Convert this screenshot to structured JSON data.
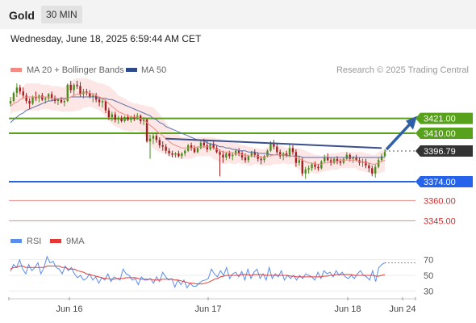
{
  "header": {
    "instrument": "Gold",
    "timeframe": "30 MIN",
    "timestamp": "Wednesday, June 18, 2025 6:59:44 AM CET"
  },
  "legend": {
    "ma20": "MA 20 + Bollinger Bands",
    "ma50": "MA 50",
    "copyright": "Research © 2025 Trading Central"
  },
  "colors": {
    "resistance": "#58a11c",
    "current": "#333333",
    "support_pivot": "#2563eb",
    "support": "#e57373",
    "candle_up": "#4c8c1e",
    "candle_down": "#a31d1d",
    "band": "#fde0e0",
    "ma20": "#f28b82",
    "ma50": "#5c6fa8",
    "trendline": "#3b4f8a",
    "arrow": "#2f5fa8",
    "rsi": "#5b8def",
    "rsi_ma": "#e53935"
  },
  "levels": [
    {
      "value": 3421.0,
      "label": "3421.00",
      "role": "resistance"
    },
    {
      "value": 3410.0,
      "label": "3410.00",
      "role": "resistance"
    },
    {
      "value": 3396.79,
      "label": "3396.79",
      "role": "current"
    },
    {
      "value": 3374.0,
      "label": "3374.00",
      "role": "support_pivot"
    },
    {
      "value": 3360.0,
      "label": "3360.00",
      "role": "support"
    },
    {
      "value": 3345.0,
      "label": "3345.00",
      "role": "support"
    }
  ],
  "rsi": {
    "legend_rsi": "RSI",
    "legend_ma": "9MA",
    "ticks": [
      70,
      50,
      30
    ],
    "ylim": [
      20,
      80
    ],
    "rsi_values": [
      55,
      64,
      60,
      70,
      58,
      52,
      64,
      56,
      60,
      66,
      52,
      60,
      74,
      66,
      68,
      60,
      58,
      52,
      62,
      56,
      60,
      52,
      47,
      50,
      44,
      46,
      52,
      44,
      48,
      40,
      47,
      44,
      52,
      42,
      48,
      46,
      44,
      58,
      52,
      50,
      44,
      46,
      38,
      48,
      44,
      44,
      46,
      40,
      48,
      42,
      54,
      48,
      44,
      46,
      35,
      44,
      38,
      44,
      34,
      40,
      36,
      36,
      40,
      43,
      44,
      46,
      58,
      52,
      48,
      56,
      50,
      60,
      46,
      52,
      54,
      48,
      55,
      44,
      58,
      46,
      54,
      58,
      46,
      52,
      44,
      60,
      46,
      52,
      48,
      56,
      44,
      50,
      46,
      50,
      44,
      50,
      46,
      52,
      50,
      48,
      44,
      54,
      46,
      56,
      52,
      54,
      48,
      56,
      50,
      54,
      48,
      46,
      50,
      46,
      52,
      56,
      50,
      48,
      44,
      56,
      42,
      60,
      64,
      66
    ],
    "ma_values": [
      58,
      60,
      60,
      62,
      62,
      60,
      60,
      60,
      60,
      60,
      60,
      60,
      62,
      62,
      62,
      62,
      62,
      60,
      60,
      58,
      58,
      58,
      56,
      55,
      54,
      52,
      51,
      50,
      49,
      48,
      47,
      46,
      46,
      45,
      45,
      46,
      46,
      46,
      47,
      47,
      47,
      47,
      46,
      45,
      45,
      45,
      45,
      44,
      44,
      44,
      45,
      45,
      45,
      45,
      44,
      44,
      43,
      42,
      41,
      40,
      40,
      39,
      39,
      39,
      40,
      41,
      43,
      45,
      46,
      48,
      49,
      50,
      50,
      50,
      50,
      50,
      51,
      51,
      51,
      50,
      51,
      51,
      51,
      51,
      50,
      50,
      50,
      50,
      50,
      50,
      50,
      50,
      49,
      49,
      48,
      48,
      48,
      48,
      48,
      48,
      48,
      48,
      48,
      49,
      49,
      50,
      50,
      51,
      51,
      51,
      51,
      51,
      51,
      50,
      50,
      50,
      50,
      50,
      50,
      50,
      49,
      49,
      50,
      51
    ]
  },
  "chart_data": {
    "type": "candlestick",
    "title": "Gold",
    "timeframe": "30 MIN",
    "xlabel": "",
    "ylabel": "",
    "ylim": [
      3338,
      3452
    ],
    "x_ticks": [
      "Jun 16",
      "Jun 17",
      "Jun 18",
      "Jun 24"
    ],
    "candles": [
      [
        3432,
        3437,
        3430,
        3434
      ],
      [
        3434,
        3441,
        3433,
        3440
      ],
      [
        3440,
        3447,
        3437,
        3444
      ],
      [
        3444,
        3446,
        3439,
        3441
      ],
      [
        3441,
        3444,
        3436,
        3438
      ],
      [
        3438,
        3440,
        3432,
        3434
      ],
      [
        3434,
        3436,
        3428,
        3432
      ],
      [
        3432,
        3438,
        3431,
        3437
      ],
      [
        3437,
        3441,
        3434,
        3436
      ],
      [
        3436,
        3439,
        3433,
        3438
      ],
      [
        3438,
        3440,
        3434,
        3435
      ],
      [
        3435,
        3437,
        3432,
        3436
      ],
      [
        3436,
        3440,
        3434,
        3439
      ],
      [
        3439,
        3441,
        3434,
        3436
      ],
      [
        3436,
        3438,
        3432,
        3434
      ],
      [
        3434,
        3436,
        3431,
        3435
      ],
      [
        3435,
        3437,
        3432,
        3433
      ],
      [
        3433,
        3435,
        3430,
        3434
      ],
      [
        3434,
        3447,
        3433,
        3446
      ],
      [
        3446,
        3449,
        3440,
        3442
      ],
      [
        3442,
        3447,
        3438,
        3446
      ],
      [
        3446,
        3449,
        3443,
        3445
      ],
      [
        3445,
        3448,
        3437,
        3439
      ],
      [
        3439,
        3443,
        3436,
        3441
      ],
      [
        3441,
        3443,
        3438,
        3440
      ],
      [
        3440,
        3442,
        3436,
        3437
      ],
      [
        3437,
        3440,
        3433,
        3438
      ],
      [
        3438,
        3440,
        3433,
        3435
      ],
      [
        3435,
        3437,
        3430,
        3433
      ],
      [
        3433,
        3436,
        3429,
        3434
      ],
      [
        3434,
        3435,
        3425,
        3427
      ],
      [
        3427,
        3429,
        3420,
        3422
      ],
      [
        3422,
        3426,
        3419,
        3424
      ],
      [
        3424,
        3426,
        3418,
        3420
      ],
      [
        3420,
        3423,
        3417,
        3421
      ],
      [
        3421,
        3423,
        3418,
        3419
      ],
      [
        3419,
        3423,
        3418,
        3422
      ],
      [
        3422,
        3424,
        3419,
        3420
      ],
      [
        3420,
        3423,
        3418,
        3422
      ],
      [
        3422,
        3424,
        3419,
        3421
      ],
      [
        3421,
        3425,
        3420,
        3423
      ],
      [
        3423,
        3424,
        3417,
        3419
      ],
      [
        3419,
        3422,
        3416,
        3420
      ],
      [
        3420,
        3421,
        3403,
        3404
      ],
      [
        3404,
        3409,
        3391,
        3406
      ],
      [
        3406,
        3410,
        3402,
        3408
      ],
      [
        3408,
        3410,
        3403,
        3405
      ],
      [
        3405,
        3407,
        3399,
        3401
      ],
      [
        3401,
        3404,
        3397,
        3400
      ],
      [
        3400,
        3402,
        3395,
        3397
      ],
      [
        3397,
        3399,
        3393,
        3395
      ],
      [
        3395,
        3397,
        3392,
        3394
      ],
      [
        3394,
        3396,
        3392,
        3395
      ],
      [
        3395,
        3397,
        3392,
        3393
      ],
      [
        3393,
        3396,
        3391,
        3395
      ],
      [
        3395,
        3398,
        3393,
        3397
      ],
      [
        3397,
        3402,
        3396,
        3401
      ],
      [
        3401,
        3403,
        3397,
        3399
      ],
      [
        3399,
        3401,
        3395,
        3396
      ],
      [
        3396,
        3400,
        3395,
        3399
      ],
      [
        3399,
        3405,
        3398,
        3403
      ],
      [
        3403,
        3406,
        3399,
        3401
      ],
      [
        3401,
        3404,
        3396,
        3398
      ],
      [
        3398,
        3403,
        3397,
        3402
      ],
      [
        3402,
        3404,
        3398,
        3399
      ],
      [
        3399,
        3401,
        3395,
        3396
      ],
      [
        3396,
        3398,
        3378,
        3394
      ],
      [
        3394,
        3397,
        3388,
        3392
      ],
      [
        3392,
        3396,
        3390,
        3395
      ],
      [
        3395,
        3397,
        3391,
        3393
      ],
      [
        3393,
        3396,
        3390,
        3394
      ],
      [
        3394,
        3398,
        3393,
        3397
      ],
      [
        3397,
        3399,
        3393,
        3395
      ],
      [
        3395,
        3397,
        3390,
        3392
      ],
      [
        3392,
        3395,
        3388,
        3390
      ],
      [
        3390,
        3394,
        3388,
        3393
      ],
      [
        3393,
        3397,
        3392,
        3396
      ],
      [
        3396,
        3398,
        3392,
        3394
      ],
      [
        3394,
        3396,
        3389,
        3391
      ],
      [
        3391,
        3393,
        3387,
        3390
      ],
      [
        3390,
        3394,
        3388,
        3393
      ],
      [
        3393,
        3398,
        3392,
        3397
      ],
      [
        3397,
        3404,
        3396,
        3403
      ],
      [
        3403,
        3405,
        3398,
        3400
      ],
      [
        3400,
        3402,
        3394,
        3396
      ],
      [
        3396,
        3398,
        3391,
        3393
      ],
      [
        3393,
        3396,
        3390,
        3395
      ],
      [
        3395,
        3397,
        3392,
        3393
      ],
      [
        3393,
        3402,
        3392,
        3399
      ],
      [
        3399,
        3401,
        3394,
        3396
      ],
      [
        3396,
        3398,
        3385,
        3388
      ],
      [
        3388,
        3393,
        3386,
        3390
      ],
      [
        3390,
        3392,
        3378,
        3380
      ],
      [
        3380,
        3385,
        3376,
        3383
      ],
      [
        3383,
        3386,
        3380,
        3384
      ],
      [
        3384,
        3388,
        3382,
        3387
      ],
      [
        3387,
        3389,
        3383,
        3385
      ],
      [
        3385,
        3387,
        3382,
        3384
      ],
      [
        3384,
        3390,
        3383,
        3389
      ],
      [
        3389,
        3394,
        3388,
        3392
      ],
      [
        3392,
        3395,
        3389,
        3390
      ],
      [
        3390,
        3392,
        3386,
        3388
      ],
      [
        3388,
        3392,
        3387,
        3391
      ],
      [
        3391,
        3393,
        3387,
        3389
      ],
      [
        3389,
        3391,
        3386,
        3388
      ],
      [
        3388,
        3392,
        3387,
        3391
      ],
      [
        3391,
        3396,
        3390,
        3394
      ],
      [
        3394,
        3395,
        3389,
        3391
      ],
      [
        3391,
        3393,
        3388,
        3392
      ],
      [
        3392,
        3394,
        3389,
        3390
      ],
      [
        3390,
        3392,
        3386,
        3388
      ],
      [
        3388,
        3391,
        3385,
        3389
      ],
      [
        3389,
        3391,
        3384,
        3386
      ],
      [
        3386,
        3388,
        3381,
        3384
      ],
      [
        3384,
        3386,
        3378,
        3380
      ],
      [
        3380,
        3387,
        3377,
        3385
      ],
      [
        3385,
        3392,
        3384,
        3390
      ],
      [
        3390,
        3395,
        3389,
        3393
      ],
      [
        3393,
        3398,
        3392,
        3396
      ]
    ],
    "ma20": [
      3430,
      3432,
      3433,
      3435,
      3436,
      3437,
      3437,
      3437,
      3437,
      3437,
      3437,
      3437,
      3437,
      3436,
      3436,
      3436,
      3435,
      3435,
      3436,
      3437,
      3438,
      3439,
      3439,
      3440,
      3440,
      3440,
      3439,
      3438,
      3437,
      3436,
      3434,
      3432,
      3430,
      3428,
      3426,
      3425,
      3424,
      3423,
      3422,
      3422,
      3422,
      3421,
      3420,
      3418,
      3416,
      3414,
      3412,
      3410,
      3408,
      3406,
      3404,
      3402,
      3401,
      3400,
      3399,
      3399,
      3399,
      3399,
      3399,
      3400,
      3400,
      3400,
      3400,
      3400,
      3399,
      3398,
      3397,
      3396,
      3396,
      3396,
      3395,
      3395,
      3395,
      3394,
      3394,
      3393,
      3393,
      3393,
      3393,
      3392,
      3392,
      3393,
      3393,
      3394,
      3394,
      3394,
      3394,
      3393,
      3393,
      3393,
      3392,
      3391,
      3390,
      3389,
      3388,
      3388,
      3387,
      3387,
      3387,
      3388,
      3388,
      3389,
      3389,
      3389,
      3390,
      3390,
      3390,
      3390,
      3390,
      3390,
      3389,
      3389,
      3388,
      3388,
      3387,
      3387,
      3388,
      3389,
      3390
    ],
    "ma50": [
      3418,
      3420,
      3422,
      3424,
      3425,
      3427,
      3428,
      3429,
      3430,
      3431,
      3432,
      3433,
      3434,
      3434,
      3435,
      3435,
      3436,
      3436,
      3436,
      3437,
      3437,
      3437,
      3437,
      3437,
      3437,
      3437,
      3437,
      3437,
      3436,
      3436,
      3436,
      3435,
      3435,
      3434,
      3433,
      3432,
      3431,
      3430,
      3429,
      3428,
      3427,
      3426,
      3425,
      3424,
      3423,
      3421,
      3420,
      3418,
      3417,
      3415,
      3414,
      3413,
      3412,
      3411,
      3410,
      3409,
      3408,
      3407,
      3406,
      3405,
      3405,
      3404,
      3403,
      3402,
      3402,
      3401,
      3400,
      3400,
      3399,
      3399,
      3398,
      3398,
      3397,
      3397,
      3397,
      3396,
      3396,
      3396,
      3395,
      3395,
      3395,
      3395,
      3394,
      3394,
      3394,
      3394,
      3394,
      3394,
      3393,
      3393,
      3393,
      3393,
      3392,
      3392,
      3392,
      3392,
      3392,
      3392,
      3392,
      3392,
      3392,
      3392,
      3392,
      3392,
      3392,
      3392,
      3392,
      3392,
      3392,
      3392,
      3392,
      3392,
      3392,
      3392,
      3392,
      3392,
      3392,
      3392,
      3392
    ],
    "band_width": [
      6,
      6,
      7,
      8,
      9,
      10,
      10,
      10,
      10,
      10,
      9,
      9,
      9,
      9,
      9,
      9,
      9,
      9,
      10,
      11,
      12,
      12,
      12,
      11,
      11,
      10,
      10,
      10,
      10,
      11,
      12,
      13,
      13,
      13,
      12,
      12,
      12,
      11,
      11,
      10,
      10,
      10,
      11,
      12,
      14,
      15,
      15,
      14,
      13,
      12,
      11,
      10,
      9,
      9,
      8,
      8,
      8,
      8,
      7,
      7,
      7,
      7,
      7,
      7,
      8,
      8,
      9,
      9,
      9,
      8,
      8,
      8,
      7,
      7,
      7,
      7,
      7,
      6,
      6,
      6,
      6,
      7,
      7,
      7,
      7,
      7,
      6,
      6,
      6,
      6,
      7,
      8,
      8,
      8,
      8,
      7,
      7,
      7,
      6,
      6,
      6,
      6,
      6,
      6,
      6,
      6,
      6,
      6,
      6,
      6,
      7,
      7,
      7,
      7,
      7,
      7,
      8,
      8,
      8
    ],
    "trendline": [
      [
        3406,
        3399
      ]
    ],
    "forecast_target": 3421.0
  }
}
